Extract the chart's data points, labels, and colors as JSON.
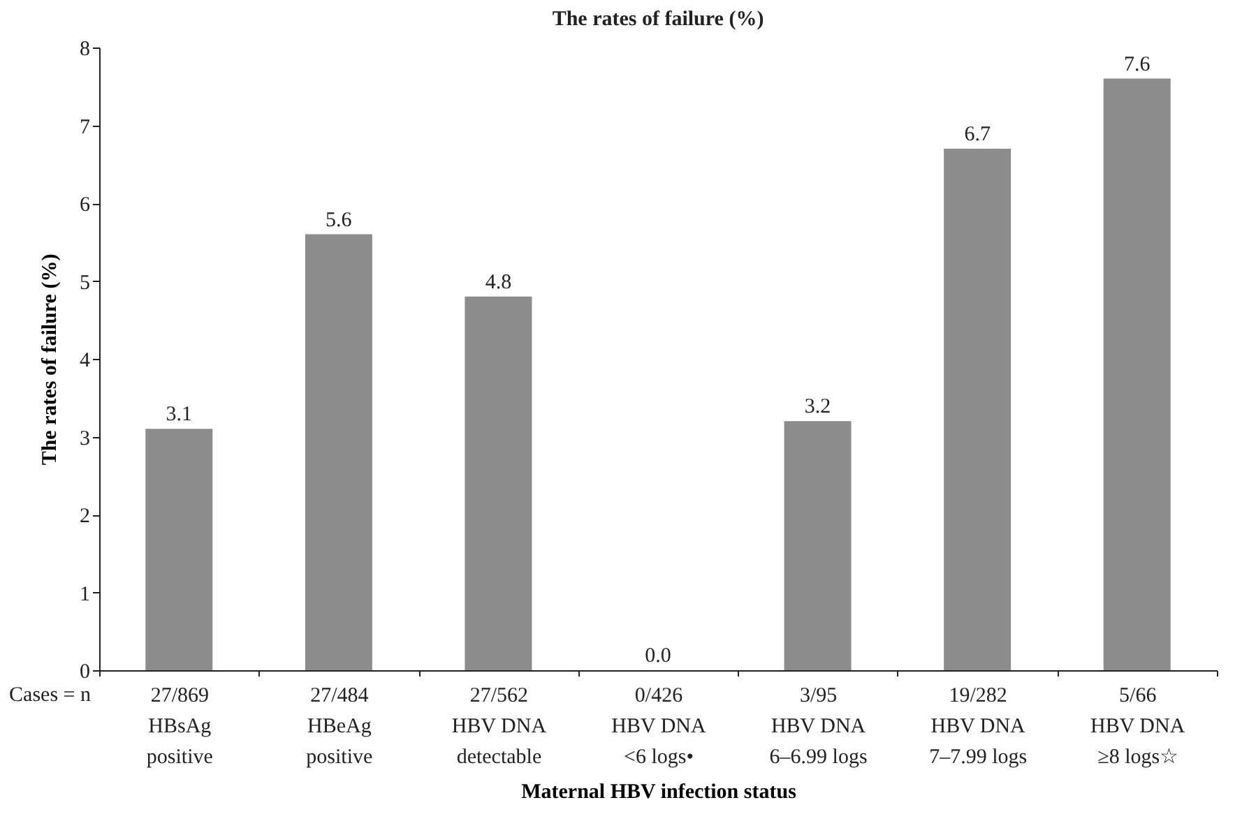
{
  "chart_data": {
    "type": "bar",
    "title": "The rates of failure (%)",
    "xlabel": "Maternal HBV infection status",
    "ylabel": "The rates of failure (%)",
    "categories": [
      "27/869\nHBsAg\npositive",
      "27/484\nHBeAg\npositive",
      "27/562\nHBV DNA\ndetectable",
      "0/426\nHBV DNA\n<6 logs•",
      "3/95\nHBV DNA\n6–6.99 logs",
      "19/282\nHBV DNA\n7–7.99 logs",
      "5/66\nHBV DNA\n≥8 logs☆"
    ],
    "values": [
      3.1,
      5.6,
      4.8,
      0.0,
      3.2,
      6.7,
      7.6
    ],
    "value_labels": [
      "3.1",
      "5.6",
      "4.8",
      "0.0",
      "3.2",
      "6.7",
      "7.6"
    ],
    "color": "#8c8c8c",
    "ylim": [
      0,
      8
    ],
    "yticks": [
      0,
      1,
      2,
      3,
      4,
      5,
      6,
      7,
      8
    ],
    "grid": false,
    "annotations": [
      "Cases = n"
    ]
  }
}
